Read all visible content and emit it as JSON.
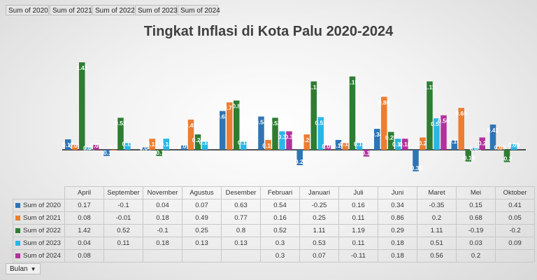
{
  "field_buttons": [
    "Sum of 2020",
    "Sum of 2021",
    "Sum of 2022",
    "Sum of 2023",
    "Sum of 2024"
  ],
  "axis_field_button": "Bulan",
  "chart_data": {
    "type": "bar",
    "title": "Tingkat Inflasi di Kota Palu 2020-2024",
    "categories": [
      "April",
      "September",
      "November",
      "Agustus",
      "Desember",
      "Februari",
      "Januari",
      "Juli",
      "Juni",
      "Maret",
      "Mei",
      "Oktober"
    ],
    "series": [
      {
        "name": "Sum of 2020",
        "color": "#2e75b6",
        "values": [
          0.17,
          -0.1,
          0.04,
          0.07,
          0.63,
          0.54,
          -0.25,
          0.16,
          0.34,
          -0.35,
          0.15,
          0.41
        ],
        "labels": [
          "0.17",
          "-0.1",
          "0.04",
          "0.07",
          "0.63",
          "0.54",
          "-0.25",
          "0.16",
          "0.34",
          "-0.35",
          "0.15",
          "0.41"
        ]
      },
      {
        "name": "Sum of 2021",
        "color": "#ed7d31",
        "values": [
          0.08,
          -0.01,
          0.18,
          0.49,
          0.77,
          0.16,
          0.25,
          0.11,
          0.86,
          0.2,
          0.68,
          0.05
        ],
        "labels": [
          "0.08",
          "-0.01",
          "0.18",
          "0.49",
          "0.77",
          "0.16",
          "0.25",
          "0.11",
          "0.86",
          "0.2",
          "0.68",
          "0.05"
        ]
      },
      {
        "name": "Sum of 2022",
        "color": "#2e7d32",
        "values": [
          1.42,
          0.52,
          -0.1,
          0.25,
          0.8,
          0.52,
          1.11,
          1.19,
          0.29,
          1.11,
          -0.19,
          -0.2
        ],
        "labels": [
          "1.42",
          "0.52",
          "-0.1",
          "0.25",
          "0.8",
          "0.52",
          "1.11",
          "1.19",
          "0.29",
          "1.11",
          "-0.19",
          "-0.2"
        ]
      },
      {
        "name": "Sum of 2023",
        "color": "#29b6e8",
        "values": [
          0.04,
          0.11,
          0.18,
          0.13,
          0.13,
          0.3,
          0.53,
          0.11,
          0.18,
          0.51,
          0.03,
          0.09
        ],
        "labels": [
          "0.04",
          "0.11",
          "0.18",
          "0.13",
          "0.13",
          "0.3",
          "0.53",
          "0.11",
          "0.18",
          "0.51",
          "0.03",
          "0.09"
        ]
      },
      {
        "name": "Sum of 2024",
        "color": "#b1329b",
        "values": [
          0.08,
          null,
          null,
          null,
          null,
          0.3,
          0.07,
          -0.11,
          0.18,
          0.56,
          0.2,
          null
        ],
        "labels": [
          "0.08",
          "",
          "",
          "",
          "",
          "0.3",
          "0.07",
          "-0.11",
          "0.18",
          "0.56",
          "0.2",
          ""
        ]
      }
    ],
    "legend": "data table",
    "grid": false
  }
}
